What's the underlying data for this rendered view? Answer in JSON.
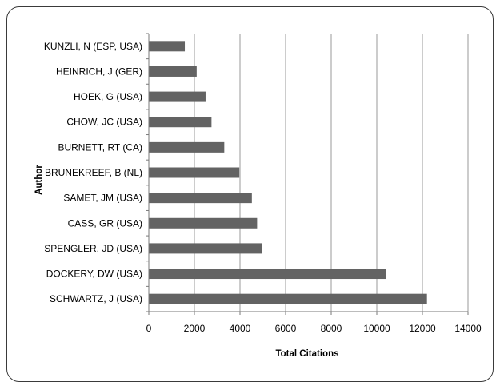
{
  "chart_data": {
    "type": "bar",
    "orientation": "horizontal",
    "categories": [
      "SCHWARTZ, J (USA)",
      "DOCKERY, DW (USA)",
      "SPENGLER, JD (USA)",
      "CASS, GR (USA)",
      "SAMET, JM (USA)",
      "BRUNEKREEF, B (NL)",
      "BURNETT, RT (CA)",
      "CHOW, JC (USA)",
      "HOEK, G (USA)",
      "HEINRICH, J (GER)",
      "KUNZLI, N (ESP, USA)"
    ],
    "values": [
      12200,
      10400,
      4950,
      4750,
      4520,
      3970,
      3310,
      2750,
      2490,
      2100,
      1580
    ],
    "xlabel": "Total Citations",
    "ylabel": "Author",
    "xlim": [
      0,
      14000
    ],
    "xticks": [
      "0",
      "2000",
      "4000",
      "6000",
      "8000",
      "10000",
      "12000",
      "14000"
    ],
    "grid": "vertical",
    "bar_color": "#636363",
    "grid_color": "#9a9a9a"
  }
}
